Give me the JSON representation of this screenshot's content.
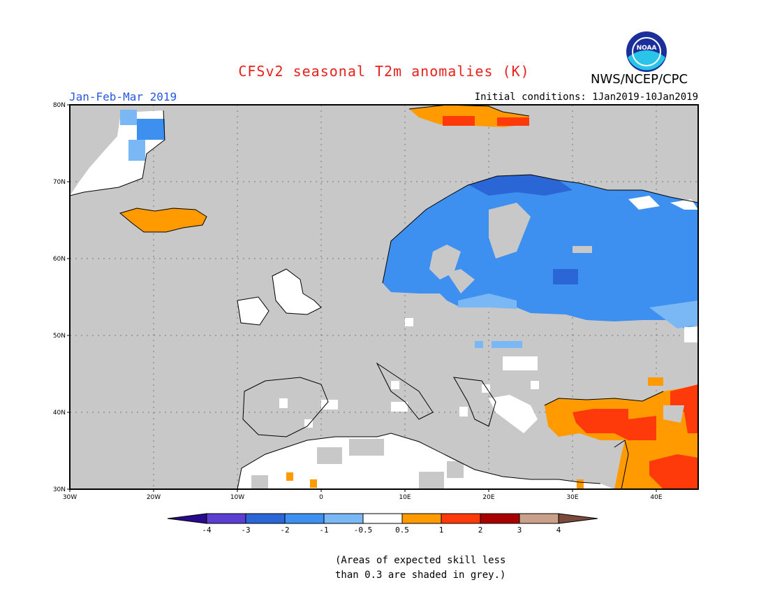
{
  "title": "CFSv2 seasonal T2m anomalies (K)",
  "agency": "NWS/NCEP/CPC",
  "logo_text": "NOAA",
  "period": "Jan-Feb-Mar 2019",
  "initial_conditions": "Initial conditions: 1Jan2019-10Jan2019",
  "colors": {
    "title": "#e8211c",
    "period": "#2757e0",
    "grey_mask": "#c8c8c8",
    "ocean_land": "#c8c8c8"
  },
  "lat_labels": [
    "80N",
    "70N",
    "60N",
    "50N",
    "40N",
    "30N"
  ],
  "lon_labels": [
    "30W",
    "20W",
    "10W",
    "0",
    "10E",
    "20E",
    "30E",
    "40E"
  ],
  "colorbar": {
    "colors": [
      "#2a0a8c",
      "#5b3fd2",
      "#2a66d6",
      "#3d8ff0",
      "#79b8f5",
      "#ffffff",
      "#ff9a00",
      "#ff3a0a",
      "#a80000",
      "#c9a08a",
      "#7a4a3c"
    ],
    "labels": [
      "-4",
      "-3",
      "-2",
      "-1",
      "-0.5",
      "0.5",
      "1",
      "2",
      "3",
      "4"
    ]
  },
  "note_lines": [
    "(Areas of expected skill less",
    "than 0.3 are shaded in grey.)"
  ]
}
